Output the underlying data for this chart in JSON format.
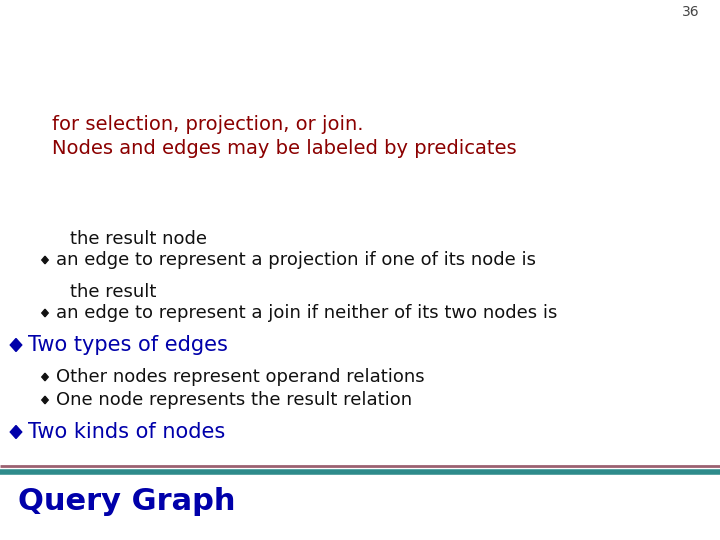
{
  "title": "Query Graph",
  "title_color": "#0000aa",
  "title_fontsize": 22,
  "background_color": "#ffffff",
  "header_line1_color": "#2e8b8b",
  "header_line2_color": "#9b6070",
  "bullet1_text": "Two kinds of nodes",
  "bullet1_color": "#0000aa",
  "bullet1_fontsize": 15,
  "sub_bullet_color": "#111111",
  "sub_bullet_fontsize": 13,
  "sub1_1": "One node represents the result relation",
  "sub1_2": "Other nodes represent operand relations",
  "bullet2_text": "Two types of edges",
  "bullet2_color": "#0000aa",
  "bullet2_fontsize": 15,
  "sub2_1a": "an edge to represent a join if neither of its two nodes is",
  "sub2_1b": "the result",
  "sub2_2a": "an edge to represent a projection if one of its node is",
  "sub2_2b": "the result node",
  "note_line1": "Nodes and edges may be labeled by predicates",
  "note_line2": "for selection, projection, or join.",
  "note_color": "#8b0000",
  "note_fontsize": 14,
  "page_number": "36",
  "page_num_fontsize": 10,
  "diamond_color": "#0000aa",
  "bullet_marker_color": "#111111"
}
